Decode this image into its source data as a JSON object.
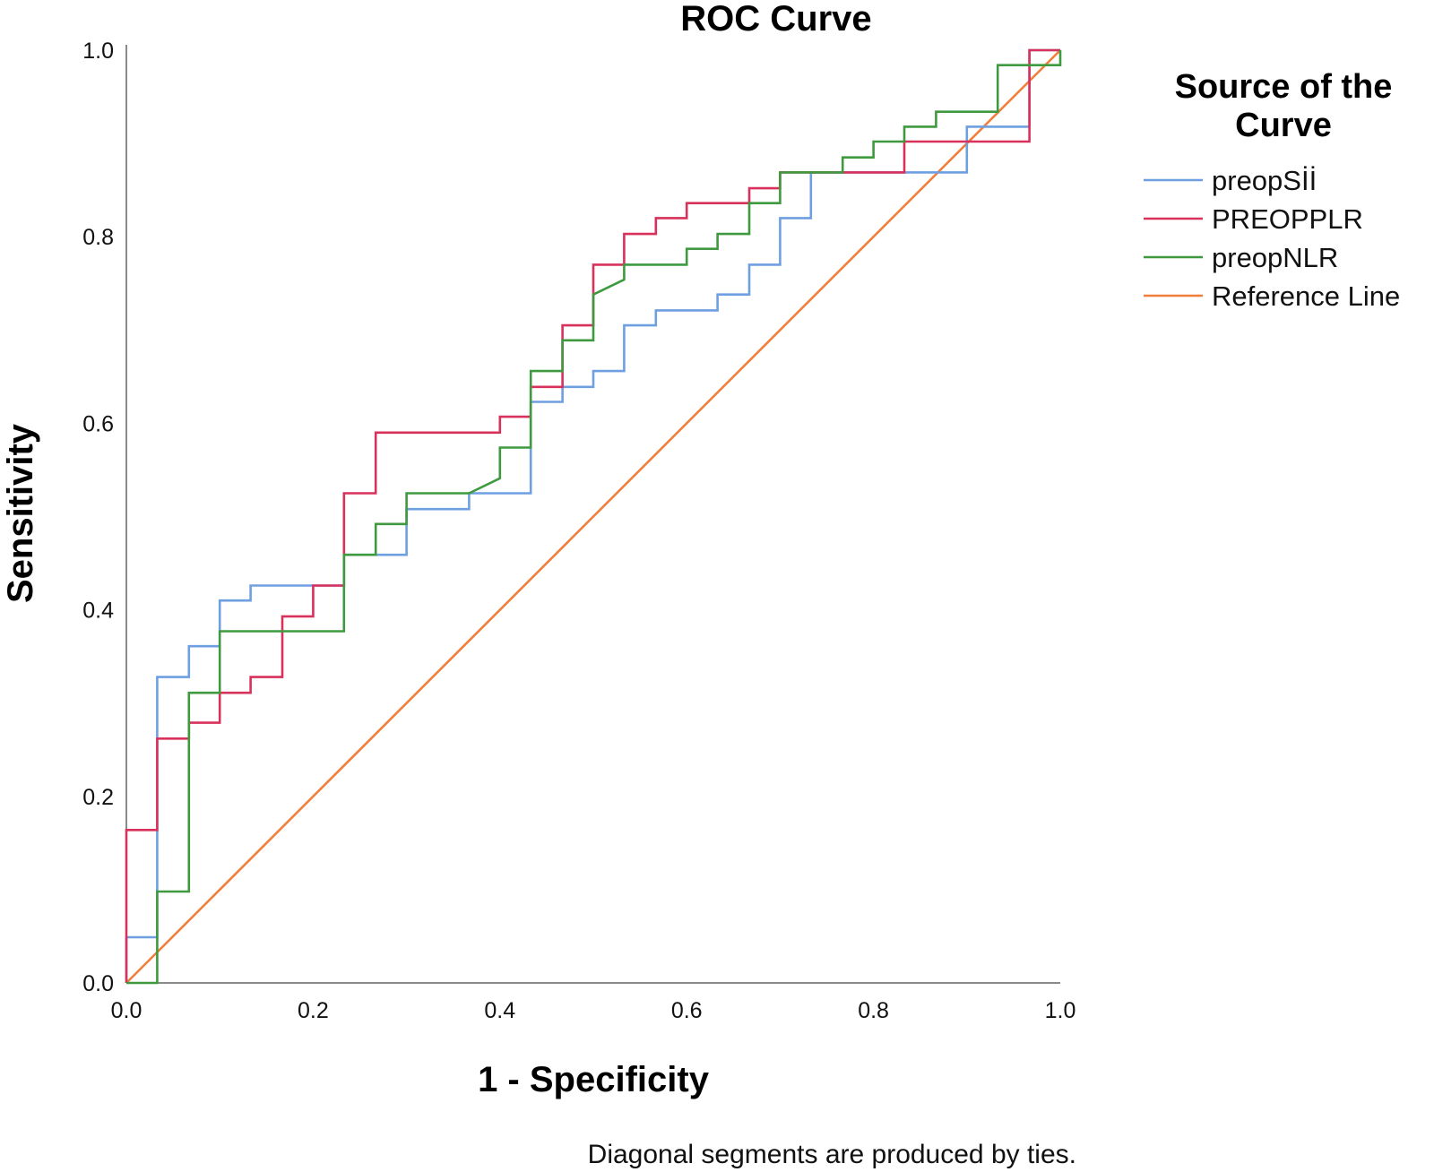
{
  "chart_data": {
    "type": "line",
    "title": "ROC Curve",
    "xlabel": "1 - Specificity",
    "ylabel": "Sensitivity",
    "xlim": [
      0,
      1
    ],
    "ylim": [
      0,
      1
    ],
    "x_ticks": [
      "0.0",
      "0.2",
      "0.4",
      "0.6",
      "0.8",
      "1.0"
    ],
    "y_ticks": [
      "0.0",
      "0.2",
      "0.4",
      "0.6",
      "0.8",
      "1.0"
    ],
    "grid": false,
    "legend": {
      "title_lines": [
        "Source of the",
        "Curve"
      ],
      "placement": "right"
    },
    "note": "Diagonal segments are produced by ties.",
    "series": [
      {
        "name": "preopSİİ",
        "color": "#6e9fe0",
        "points": [
          [
            0,
            0
          ],
          [
            0,
            0.049
          ],
          [
            0.033,
            0.049
          ],
          [
            0.033,
            0.328
          ],
          [
            0.067,
            0.328
          ],
          [
            0.067,
            0.361
          ],
          [
            0.1,
            0.361
          ],
          [
            0.1,
            0.41
          ],
          [
            0.133,
            0.41
          ],
          [
            0.133,
            0.426
          ],
          [
            0.233,
            0.426
          ],
          [
            0.233,
            0.459
          ],
          [
            0.3,
            0.459
          ],
          [
            0.3,
            0.508
          ],
          [
            0.367,
            0.508
          ],
          [
            0.367,
            0.525
          ],
          [
            0.433,
            0.525
          ],
          [
            0.433,
            0.623
          ],
          [
            0.467,
            0.623
          ],
          [
            0.467,
            0.639
          ],
          [
            0.5,
            0.639
          ],
          [
            0.5,
            0.656
          ],
          [
            0.533,
            0.656
          ],
          [
            0.533,
            0.705
          ],
          [
            0.567,
            0.705
          ],
          [
            0.567,
            0.721
          ],
          [
            0.633,
            0.721
          ],
          [
            0.633,
            0.738
          ],
          [
            0.667,
            0.738
          ],
          [
            0.667,
            0.77
          ],
          [
            0.7,
            0.77
          ],
          [
            0.7,
            0.82
          ],
          [
            0.733,
            0.82
          ],
          [
            0.733,
            0.869
          ],
          [
            0.9,
            0.869
          ],
          [
            0.9,
            0.918
          ],
          [
            0.967,
            0.918
          ],
          [
            0.967,
            1.0
          ],
          [
            1.0,
            1.0
          ]
        ]
      },
      {
        "name": "PREOPPLR",
        "color": "#d8315b",
        "points": [
          [
            0,
            0
          ],
          [
            0,
            0.164
          ],
          [
            0.033,
            0.164
          ],
          [
            0.033,
            0.262
          ],
          [
            0.067,
            0.262
          ],
          [
            0.067,
            0.279
          ],
          [
            0.1,
            0.279
          ],
          [
            0.1,
            0.311
          ],
          [
            0.133,
            0.311
          ],
          [
            0.133,
            0.328
          ],
          [
            0.167,
            0.328
          ],
          [
            0.167,
            0.393
          ],
          [
            0.2,
            0.393
          ],
          [
            0.2,
            0.426
          ],
          [
            0.233,
            0.426
          ],
          [
            0.233,
            0.525
          ],
          [
            0.267,
            0.525
          ],
          [
            0.267,
            0.59
          ],
          [
            0.4,
            0.59
          ],
          [
            0.4,
            0.607
          ],
          [
            0.433,
            0.607
          ],
          [
            0.433,
            0.639
          ],
          [
            0.467,
            0.639
          ],
          [
            0.467,
            0.705
          ],
          [
            0.5,
            0.705
          ],
          [
            0.5,
            0.77
          ],
          [
            0.533,
            0.77
          ],
          [
            0.533,
            0.803
          ],
          [
            0.567,
            0.803
          ],
          [
            0.567,
            0.82
          ],
          [
            0.6,
            0.82
          ],
          [
            0.6,
            0.836
          ],
          [
            0.667,
            0.836
          ],
          [
            0.667,
            0.852
          ],
          [
            0.7,
            0.852
          ],
          [
            0.7,
            0.869
          ],
          [
            0.833,
            0.869
          ],
          [
            0.833,
            0.902
          ],
          [
            0.967,
            0.902
          ],
          [
            0.967,
            1.0
          ],
          [
            1.0,
            1.0
          ]
        ]
      },
      {
        "name": "preopNLR",
        "color": "#3f9a3f",
        "points": [
          [
            0,
            0
          ],
          [
            0.033,
            0
          ],
          [
            0.033,
            0.098
          ],
          [
            0.067,
            0.098
          ],
          [
            0.067,
            0.311
          ],
          [
            0.1,
            0.311
          ],
          [
            0.1,
            0.377
          ],
          [
            0.233,
            0.377
          ],
          [
            0.233,
            0.459
          ],
          [
            0.267,
            0.459
          ],
          [
            0.267,
            0.492
          ],
          [
            0.3,
            0.492
          ],
          [
            0.3,
            0.525
          ],
          [
            0.367,
            0.525
          ],
          [
            0.4,
            0.541
          ],
          [
            0.4,
            0.574
          ],
          [
            0.433,
            0.574
          ],
          [
            0.433,
            0.656
          ],
          [
            0.467,
            0.656
          ],
          [
            0.467,
            0.689
          ],
          [
            0.5,
            0.689
          ],
          [
            0.5,
            0.738
          ],
          [
            0.533,
            0.754
          ],
          [
            0.533,
            0.77
          ],
          [
            0.6,
            0.77
          ],
          [
            0.6,
            0.787
          ],
          [
            0.633,
            0.787
          ],
          [
            0.633,
            0.803
          ],
          [
            0.667,
            0.803
          ],
          [
            0.667,
            0.836
          ],
          [
            0.7,
            0.836
          ],
          [
            0.7,
            0.869
          ],
          [
            0.767,
            0.869
          ],
          [
            0.767,
            0.885
          ],
          [
            0.8,
            0.885
          ],
          [
            0.8,
            0.902
          ],
          [
            0.833,
            0.902
          ],
          [
            0.833,
            0.918
          ],
          [
            0.867,
            0.918
          ],
          [
            0.867,
            0.934
          ],
          [
            0.933,
            0.934
          ],
          [
            0.933,
            0.984
          ],
          [
            1.0,
            0.984
          ],
          [
            1.0,
            1.0
          ]
        ]
      },
      {
        "name": "Reference Line",
        "color": "#f07f3c",
        "points": [
          [
            0,
            0
          ],
          [
            1,
            1
          ]
        ]
      }
    ]
  }
}
